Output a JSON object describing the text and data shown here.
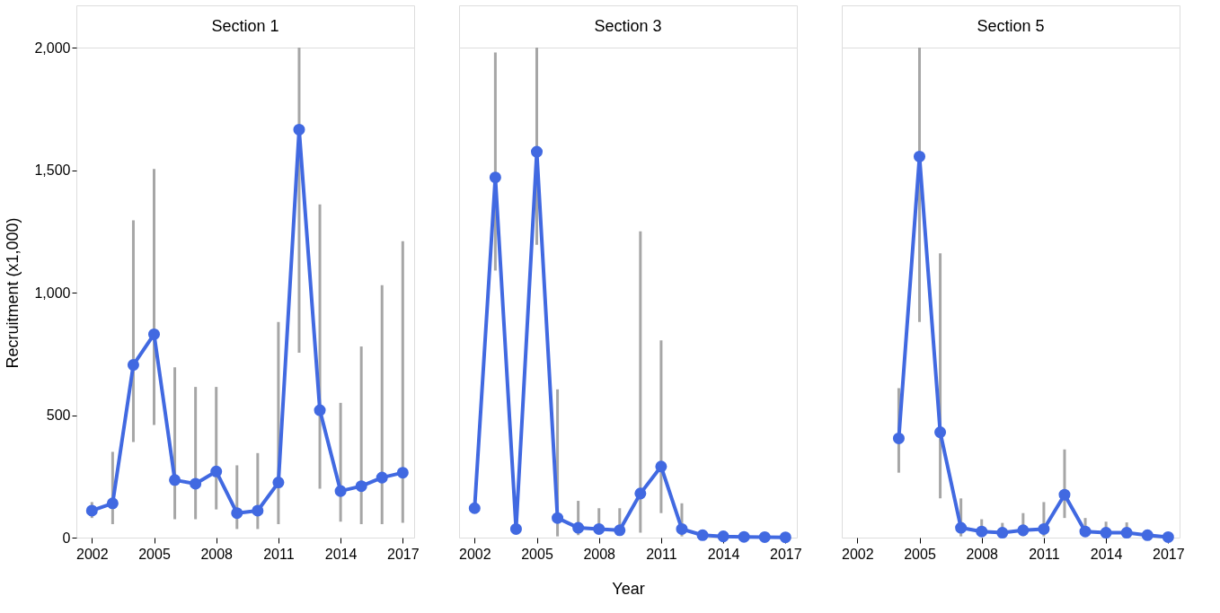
{
  "chart_data": [
    {
      "type": "line",
      "title": "Section 1",
      "ylabel": "Recruitment (x1,000)",
      "x": [
        2002,
        2003,
        2004,
        2005,
        2006,
        2007,
        2008,
        2009,
        2010,
        2011,
        2012,
        2013,
        2014,
        2015,
        2016,
        2017
      ],
      "series": [
        {
          "color": "#4169e1",
          "values": [
            110,
            140,
            705,
            830,
            235,
            220,
            270,
            100,
            110,
            225,
            1665,
            520,
            190,
            210,
            245,
            265
          ],
          "errors": [
            [
              80,
              145
            ],
            [
              55,
              350
            ],
            [
              390,
              1295
            ],
            [
              460,
              1505
            ],
            [
              75,
              695
            ],
            [
              75,
              615
            ],
            [
              115,
              615
            ],
            [
              35,
              295
            ],
            [
              35,
              345
            ],
            [
              55,
              880
            ],
            [
              755,
              2000
            ],
            [
              200,
              1360
            ],
            [
              65,
              550
            ],
            [
              55,
              780
            ],
            [
              55,
              1030
            ],
            [
              60,
              1210
            ]
          ]
        }
      ],
      "xlim": [
        2001.25,
        2017.55
      ],
      "xticks": [
        2002,
        2005,
        2008,
        2011,
        2014,
        2017
      ],
      "ylim": [
        0,
        2000
      ],
      "yticks": [
        {
          "value": 0,
          "label": "0"
        },
        {
          "value": 500,
          "label": "500"
        },
        {
          "value": 1000,
          "label": "1,000"
        },
        {
          "value": 1500,
          "label": "1,500"
        },
        {
          "value": 2000,
          "label": "2,000"
        }
      ],
      "marker": "circle",
      "grid": false
    },
    {
      "type": "line",
      "title": "Section 3",
      "xlabel": "Year",
      "x": [
        2002,
        2003,
        2004,
        2005,
        2006,
        2007,
        2008,
        2009,
        2010,
        2011,
        2012,
        2013,
        2014,
        2015,
        2016,
        2017
      ],
      "series": [
        {
          "color": "#4169e1",
          "values": [
            120,
            1470,
            35,
            1575,
            80,
            40,
            35,
            30,
            180,
            290,
            35,
            10,
            5,
            3,
            2,
            1
          ],
          "errors": [
            null,
            [
              1090,
              1980
            ],
            null,
            [
              1195,
              2000
            ],
            [
              5,
              605
            ],
            [
              10,
              150
            ],
            [
              15,
              120
            ],
            [
              10,
              120
            ],
            [
              20,
              1250
            ],
            [
              100,
              805
            ],
            [
              5,
              140
            ],
            null,
            null,
            null,
            null,
            null
          ]
        }
      ],
      "xlim": [
        2001.25,
        2017.55
      ],
      "xticks": [
        2002,
        2005,
        2008,
        2011,
        2014,
        2017
      ],
      "ylim": [
        0,
        2000
      ],
      "tick_labels": "x",
      "marker": "circle",
      "grid": false
    },
    {
      "type": "line",
      "title": "Section 5",
      "x": [
        2004,
        2005,
        2006,
        2007,
        2008,
        2009,
        2010,
        2011,
        2012,
        2013,
        2014,
        2015,
        2016,
        2017
      ],
      "series": [
        {
          "color": "#4169e1",
          "values": [
            405,
            1555,
            430,
            40,
            25,
            20,
            30,
            35,
            175,
            25,
            20,
            20,
            10,
            2
          ],
          "errors": [
            [
              265,
              610
            ],
            [
              880,
              2000
            ],
            [
              160,
              1160
            ],
            [
              5,
              160
            ],
            [
              5,
              75
            ],
            [
              5,
              60
            ],
            [
              5,
              100
            ],
            [
              5,
              145
            ],
            [
              80,
              360
            ],
            [
              5,
              80
            ],
            [
              5,
              65
            ],
            [
              5,
              62
            ],
            null,
            null
          ]
        }
      ],
      "xlim": [
        2001.25,
        2017.55
      ],
      "xticks": [
        2002,
        2005,
        2008,
        2011,
        2014,
        2017
      ],
      "ylim": [
        0,
        2000
      ],
      "tick_labels": "x",
      "marker": "circle",
      "grid": false
    }
  ]
}
